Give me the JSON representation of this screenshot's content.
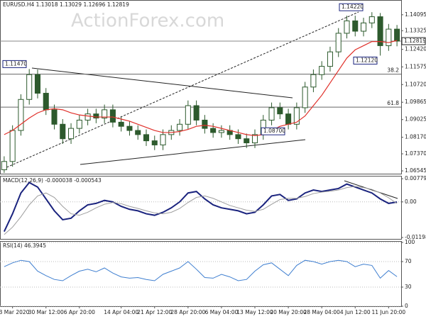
{
  "chart_data": [
    {
      "type": "candlestick",
      "title": "EURUSD.H4 1.13018 1.13029 1.12696 1.12819",
      "watermark": "ActionForex.com",
      "color": "#2d5a2d",
      "ma_color": "#e0302a",
      "opens": [
        1.066,
        1.07,
        1.085,
        1.1,
        1.112,
        1.103,
        1.095,
        1.088,
        1.081,
        1.086,
        1.09,
        1.093,
        1.091,
        1.095,
        1.089,
        1.087,
        1.085,
        1.083,
        1.08,
        1.078,
        1.083,
        1.085,
        1.088,
        1.097,
        1.09,
        1.086,
        1.084,
        1.085,
        1.083,
        1.081,
        1.079,
        1.083,
        1.09,
        1.096,
        1.093,
        1.088,
        1.096,
        1.106,
        1.112,
        1.116,
        1.123,
        1.132,
        1.138,
        1.133,
        1.137,
        1.14,
        1.126,
        1.134
      ],
      "highs": [
        1.0725,
        1.0875,
        1.1025,
        1.1147,
        1.1145,
        1.1055,
        1.0975,
        1.0905,
        1.0885,
        1.0925,
        1.0955,
        1.0955,
        1.0975,
        1.0975,
        1.0915,
        1.0895,
        1.0875,
        1.0855,
        1.0825,
        1.0855,
        1.0875,
        1.0905,
        1.0995,
        1.0995,
        1.0925,
        1.0885,
        1.0875,
        1.0875,
        1.0855,
        1.0835,
        1.0855,
        1.0925,
        1.0985,
        1.0985,
        1.0955,
        1.0985,
        1.1085,
        1.1145,
        1.1185,
        1.1255,
        1.1345,
        1.1405,
        1.1405,
        1.1395,
        1.1422,
        1.1418,
        1.1365,
        1.136
      ],
      "lows": [
        1.0645,
        1.0675,
        1.0825,
        1.0975,
        1.1005,
        1.0925,
        1.0855,
        1.0785,
        1.0785,
        1.0835,
        1.0875,
        1.0885,
        1.0885,
        1.0865,
        1.0845,
        1.0825,
        1.0805,
        1.0775,
        1.0755,
        1.0755,
        1.0805,
        1.0825,
        1.0855,
        1.0875,
        1.0835,
        1.0815,
        1.0815,
        1.0805,
        1.0785,
        1.0765,
        1.0765,
        1.0805,
        1.0875,
        1.0905,
        1.0855,
        1.0855,
        1.0935,
        1.1035,
        1.1095,
        1.1135,
        1.1205,
        1.1295,
        1.1305,
        1.1305,
        1.1345,
        1.1212,
        1.1235,
        1.1257
      ],
      "closes": [
        1.07,
        1.085,
        1.1,
        1.112,
        1.103,
        1.095,
        1.088,
        1.081,
        1.086,
        1.09,
        1.093,
        1.091,
        1.095,
        1.089,
        1.087,
        1.085,
        1.083,
        1.08,
        1.078,
        1.083,
        1.085,
        1.088,
        1.097,
        1.09,
        1.086,
        1.084,
        1.085,
        1.083,
        1.081,
        1.079,
        1.083,
        1.09,
        1.096,
        1.093,
        1.088,
        1.096,
        1.106,
        1.112,
        1.116,
        1.123,
        1.132,
        1.138,
        1.133,
        1.137,
        1.14,
        1.126,
        1.134,
        1.1282
      ],
      "ma": [
        1.083,
        1.085,
        1.088,
        1.091,
        1.0935,
        1.095,
        1.0955,
        1.095,
        1.0935,
        1.0925,
        1.092,
        1.0915,
        1.0915,
        1.0915,
        1.0905,
        1.0895,
        1.088,
        1.0865,
        1.085,
        1.084,
        1.084,
        1.0845,
        1.0855,
        1.087,
        1.0875,
        1.087,
        1.086,
        1.085,
        1.084,
        1.083,
        1.0825,
        1.083,
        1.085,
        1.087,
        1.088,
        1.089,
        1.092,
        1.097,
        1.102,
        1.108,
        1.114,
        1.12,
        1.124,
        1.126,
        1.128,
        1.128,
        1.1275,
        1.1285
      ],
      "ylim": [
        1.0641,
        1.1474
      ],
      "yticks": [
        1.14095,
        1.13325,
        {
          "value": 1.1242,
          "label": "1.12420"
        },
        1.11575,
        {
          "value": 1.1072,
          "label": "1.10720"
        },
        1.09865,
        1.09025,
        {
          "value": 1.0817,
          "label": "1.08170"
        },
        {
          "value": 1.0737,
          "label": "1.07370"
        },
        1.06545
      ],
      "last_price": {
        "value": 1.12819,
        "label": "1.12819"
      },
      "fib_levels": [
        {
          "value": 1.1122,
          "label": "38.2"
        },
        {
          "value": 1.0963,
          "label": "61.8"
        }
      ],
      "annotations": [
        {
          "value": 1.1422,
          "label": "1.14220"
        },
        {
          "value": 1.1212,
          "label": "1.12120"
        },
        {
          "value": 1.087,
          "label": "1.08700"
        },
        {
          "value": 1.1147,
          "label": "1.11470"
        }
      ]
    },
    {
      "type": "line",
      "title": "MACD(12,26,9) -0.000038 -0.000543",
      "series": [
        {
          "color": "#1a237e",
          "values": [
            -0.01,
            -0.004,
            0.003,
            0.0065,
            0.005,
            0.001,
            -0.003,
            -0.006,
            -0.0055,
            -0.003,
            -0.001,
            -0.0005,
            0.0005,
            0.0,
            -0.0015,
            -0.0025,
            -0.003,
            -0.004,
            -0.0045,
            -0.0035,
            -0.002,
            0.0,
            0.003,
            0.0035,
            0.001,
            -0.001,
            -0.002,
            -0.0025,
            -0.003,
            -0.004,
            -0.0035,
            -0.001,
            0.002,
            0.0025,
            0.0005,
            0.001,
            0.003,
            0.004,
            0.0035,
            0.004,
            0.0045,
            0.006,
            0.005,
            0.004,
            0.003,
            0.001,
            -0.0005,
            -3.8e-05
          ]
        },
        {
          "color": "#9e9e9e",
          "values": [
            -0.011,
            -0.0085,
            -0.005,
            -0.001,
            0.002,
            0.003,
            0.0015,
            -0.0015,
            -0.004,
            -0.0045,
            -0.0035,
            -0.002,
            -0.0008,
            -0.0002,
            -0.0006,
            -0.0015,
            -0.0022,
            -0.003,
            -0.0037,
            -0.004,
            -0.0035,
            -0.0022,
            -0.0002,
            0.0015,
            0.002,
            0.0012,
            0.0,
            -0.0012,
            -0.002,
            -0.0028,
            -0.0032,
            -0.0025,
            -0.0008,
            0.0008,
            0.0012,
            0.0012,
            0.0018,
            0.0028,
            0.0033,
            0.0036,
            0.004,
            0.0048,
            0.0052,
            0.0048,
            0.0042,
            0.003,
            0.0014,
            -0.000543
          ]
        }
      ],
      "ylim": [
        -0.01245,
        0.0083
      ],
      "yticks": [
        0.007797,
        {
          "value": 0,
          "label": "0.00"
        },
        -0.011981
      ]
    },
    {
      "type": "line",
      "title": "RSI(14) 46.3945",
      "series": [
        {
          "color": "#3f7fd0",
          "values": [
            62,
            68,
            72,
            70,
            55,
            48,
            42,
            40,
            48,
            55,
            58,
            54,
            60,
            52,
            46,
            44,
            45,
            42,
            40,
            50,
            55,
            60,
            70,
            58,
            45,
            44,
            50,
            46,
            40,
            42,
            55,
            65,
            68,
            58,
            48,
            64,
            72,
            70,
            66,
            70,
            72,
            70,
            62,
            66,
            64,
            44,
            56,
            46.3945
          ]
        }
      ],
      "ylim": [
        0,
        100
      ],
      "yticks": [
        100,
        70,
        30,
        0
      ],
      "categories": [
        null,
        "23 Mar 2020",
        null,
        null,
        null,
        "30 Mar 12:00",
        null,
        null,
        null,
        "6 Apr 20:00",
        null,
        null,
        null,
        null,
        "14 Apr 04:00",
        null,
        null,
        null,
        "21 Apr 12:00",
        null,
        null,
        null,
        "28 Apr 20:00",
        null,
        null,
        null,
        "6 May 04:00",
        null,
        null,
        null,
        "13 May 12:00",
        null,
        null,
        null,
        "20 May 20:00",
        null,
        null,
        null,
        "28 May 04:00",
        null,
        null,
        null,
        "4 Jun 12:00",
        null,
        null,
        null,
        "11 Jun 20:00",
        null
      ]
    }
  ]
}
